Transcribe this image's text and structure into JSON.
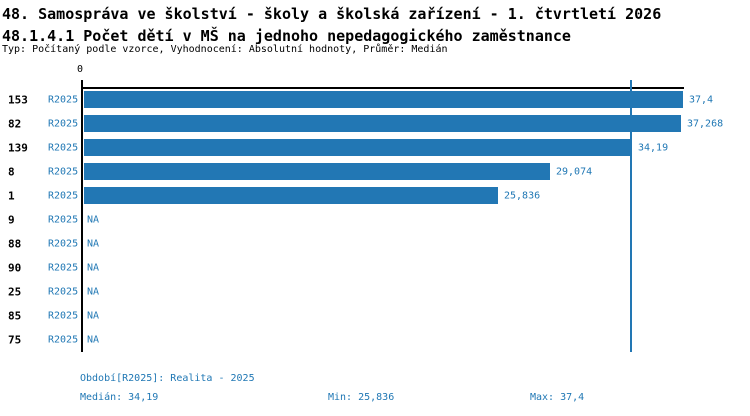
{
  "header": {
    "title": "48. Samospráva ve školství - školy a školská zařízení - 1. čtvrtletí 2026",
    "subtitle": "48.1.4.1 Počet dětí v MŠ na jednoho nepedagogického zaměstnance",
    "meta": "Typ: Počítaný podle vzorce, Vyhodnocení: Absolutní hodnoty, Průměr: Medián"
  },
  "chart_data": {
    "type": "bar",
    "orientation": "horizontal",
    "title": "48.1.4.1 Počet dětí v MŠ na jednoho nepedagogického zaměstnance",
    "axis_origin_label": "0",
    "xlim": [
      0,
      37.4
    ],
    "median": 34.19,
    "min": 25.836,
    "max": 37.4,
    "grid": false,
    "bar_color": "#2277b4",
    "label_color": "#1f77b4",
    "axis_color": "#000000",
    "series_name": "R2025",
    "rows": [
      {
        "id": "153",
        "series": "R2025",
        "value": 37.4,
        "value_label": "37,4"
      },
      {
        "id": "82",
        "series": "R2025",
        "value": 37.268,
        "value_label": "37,268"
      },
      {
        "id": "139",
        "series": "R2025",
        "value": 34.19,
        "value_label": "34,19"
      },
      {
        "id": "8",
        "series": "R2025",
        "value": 29.074,
        "value_label": "29,074"
      },
      {
        "id": "1",
        "series": "R2025",
        "value": 25.836,
        "value_label": "25,836"
      },
      {
        "id": "9",
        "series": "R2025",
        "value": null,
        "value_label": "NA"
      },
      {
        "id": "88",
        "series": "R2025",
        "value": null,
        "value_label": "NA"
      },
      {
        "id": "90",
        "series": "R2025",
        "value": null,
        "value_label": "NA"
      },
      {
        "id": "25",
        "series": "R2025",
        "value": null,
        "value_label": "NA"
      },
      {
        "id": "85",
        "series": "R2025",
        "value": null,
        "value_label": "NA"
      },
      {
        "id": "75",
        "series": "R2025",
        "value": null,
        "value_label": "NA"
      }
    ]
  },
  "footer": {
    "period": "Období[R2025]: Realita - 2025",
    "median": "Medián: 34,19",
    "min": "Min: 25,836",
    "max": "Max: 37,4"
  }
}
